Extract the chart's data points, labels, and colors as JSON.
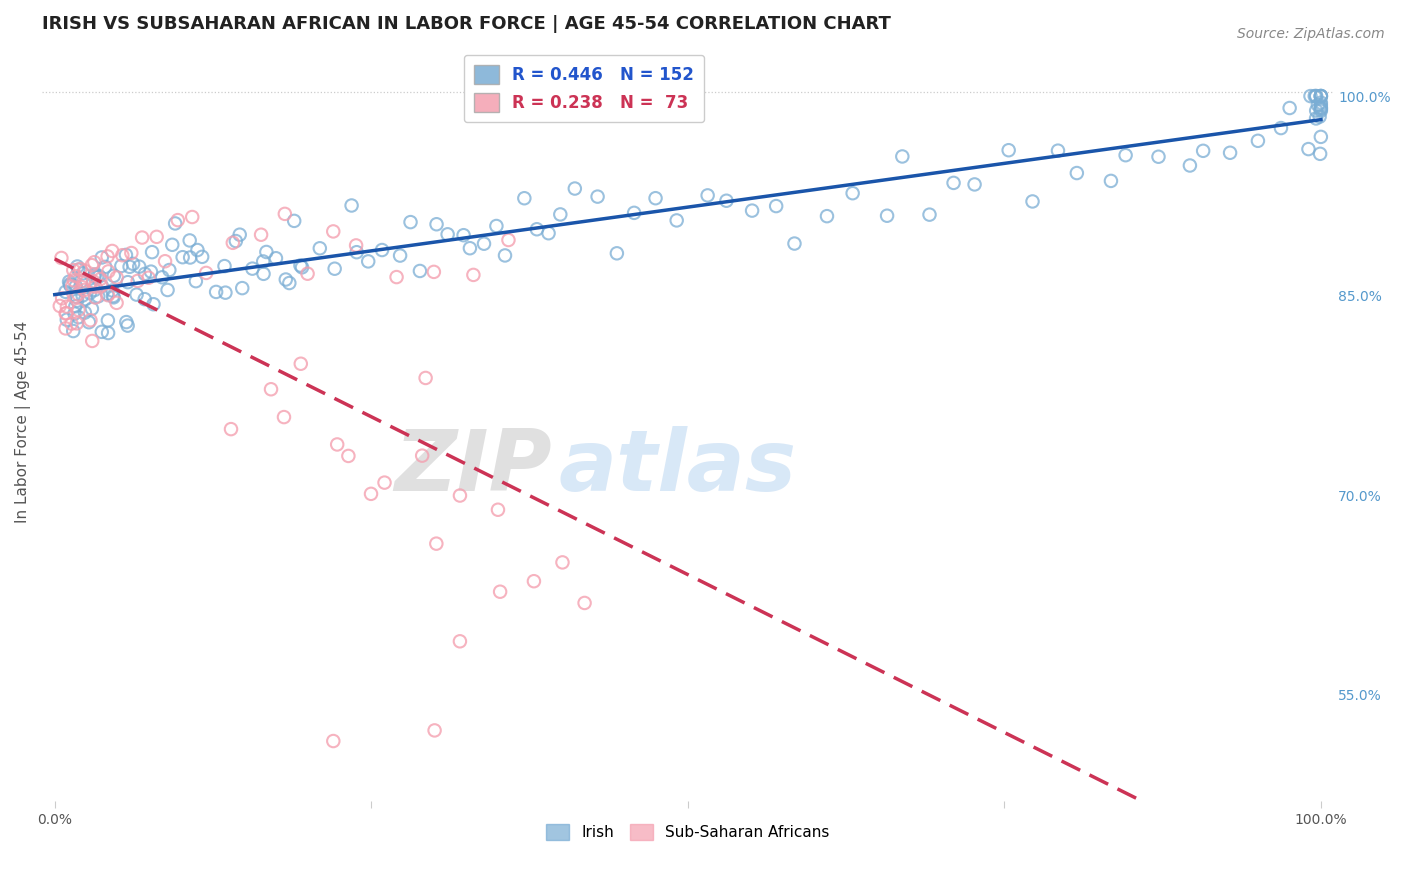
{
  "title": "IRISH VS SUBSAHARAN AFRICAN IN LABOR FORCE | AGE 45-54 CORRELATION CHART",
  "source": "Source: ZipAtlas.com",
  "ylabel": "In Labor Force | Age 45-54",
  "xlim": [
    -0.01,
    1.01
  ],
  "ylim": [
    0.47,
    1.04
  ],
  "right_yticks": [
    0.55,
    0.7,
    0.85,
    1.0
  ],
  "right_yticklabels": [
    "55.0%",
    "70.0%",
    "85.0%",
    "100.0%"
  ],
  "legend_entries": [
    {
      "label": "R = 0.446   N = 152",
      "color": "#7aadd4"
    },
    {
      "label": "R = 0.238   N =  73",
      "color": "#f4a0b0"
    }
  ],
  "legend_labels_bottom": [
    "Irish",
    "Sub-Saharan Africans"
  ],
  "irish_R": 0.446,
  "irish_N": 152,
  "subsaharan_R": 0.238,
  "subsaharan_N": 73,
  "blue_color": "#7aadd4",
  "pink_color": "#f4a0b0",
  "blue_line_color": "#1a55aa",
  "pink_line_color": "#cc3355",
  "marker_size": 80,
  "background_color": "#ffffff",
  "grid_color": "#cccccc",
  "title_fontsize": 13,
  "axis_label_fontsize": 11,
  "tick_fontsize": 10,
  "source_fontsize": 10,
  "irish_x": [
    0.008,
    0.009,
    0.01,
    0.011,
    0.012,
    0.013,
    0.014,
    0.015,
    0.016,
    0.017,
    0.018,
    0.019,
    0.02,
    0.022,
    0.023,
    0.024,
    0.025,
    0.026,
    0.027,
    0.028,
    0.029,
    0.03,
    0.031,
    0.032,
    0.033,
    0.034,
    0.035,
    0.036,
    0.037,
    0.038,
    0.039,
    0.04,
    0.042,
    0.043,
    0.044,
    0.045,
    0.046,
    0.048,
    0.05,
    0.052,
    0.054,
    0.056,
    0.058,
    0.06,
    0.062,
    0.064,
    0.066,
    0.068,
    0.07,
    0.072,
    0.075,
    0.078,
    0.08,
    0.083,
    0.086,
    0.09,
    0.093,
    0.096,
    0.1,
    0.104,
    0.108,
    0.112,
    0.116,
    0.12,
    0.125,
    0.13,
    0.135,
    0.14,
    0.145,
    0.15,
    0.155,
    0.16,
    0.165,
    0.17,
    0.175,
    0.18,
    0.185,
    0.19,
    0.195,
    0.2,
    0.21,
    0.22,
    0.23,
    0.24,
    0.25,
    0.26,
    0.27,
    0.28,
    0.29,
    0.3,
    0.31,
    0.32,
    0.33,
    0.34,
    0.35,
    0.36,
    0.37,
    0.38,
    0.39,
    0.4,
    0.415,
    0.43,
    0.445,
    0.46,
    0.475,
    0.49,
    0.51,
    0.53,
    0.55,
    0.57,
    0.59,
    0.61,
    0.63,
    0.65,
    0.67,
    0.69,
    0.71,
    0.73,
    0.75,
    0.77,
    0.79,
    0.81,
    0.83,
    0.85,
    0.87,
    0.89,
    0.91,
    0.93,
    0.95,
    0.97,
    0.98,
    0.99,
    0.995,
    0.998,
    0.999,
    1.0,
    1.0,
    1.0,
    1.0,
    1.0,
    1.0,
    1.0,
    1.0,
    1.0,
    1.0,
    1.0,
    1.0,
    1.0,
    1.0,
    1.0,
    1.0,
    1.0
  ],
  "irish_y": [
    0.84,
    0.85,
    0.855,
    0.845,
    0.838,
    0.852,
    0.848,
    0.841,
    0.835,
    0.86,
    0.843,
    0.856,
    0.849,
    0.837,
    0.862,
    0.844,
    0.853,
    0.839,
    0.858,
    0.847,
    0.865,
    0.836,
    0.861,
    0.842,
    0.854,
    0.832,
    0.869,
    0.846,
    0.857,
    0.833,
    0.87,
    0.848,
    0.834,
    0.863,
    0.843,
    0.852,
    0.875,
    0.84,
    0.855,
    0.862,
    0.878,
    0.845,
    0.858,
    0.867,
    0.838,
    0.872,
    0.85,
    0.88,
    0.843,
    0.865,
    0.855,
    0.87,
    0.86,
    0.875,
    0.848,
    0.882,
    0.863,
    0.858,
    0.872,
    0.865,
    0.88,
    0.853,
    0.888,
    0.87,
    0.862,
    0.875,
    0.858,
    0.89,
    0.868,
    0.878,
    0.862,
    0.895,
    0.872,
    0.865,
    0.882,
    0.875,
    0.868,
    0.898,
    0.88,
    0.87,
    0.885,
    0.878,
    0.892,
    0.875,
    0.9,
    0.882,
    0.888,
    0.895,
    0.878,
    0.905,
    0.89,
    0.885,
    0.9,
    0.893,
    0.908,
    0.888,
    0.902,
    0.895,
    0.912,
    0.9,
    0.905,
    0.912,
    0.9,
    0.918,
    0.908,
    0.915,
    0.92,
    0.912,
    0.925,
    0.918,
    0.928,
    0.922,
    0.93,
    0.925,
    0.935,
    0.928,
    0.94,
    0.932,
    0.942,
    0.938,
    0.945,
    0.942,
    0.948,
    0.95,
    0.952,
    0.955,
    0.958,
    0.962,
    0.965,
    0.968,
    0.972,
    0.975,
    0.978,
    0.98,
    0.985,
    0.988,
    0.99,
    0.992,
    0.994,
    0.995,
    0.996,
    0.997,
    0.998,
    0.999,
    1.0,
    1.0,
    1.0,
    1.0,
    1.0,
    1.0,
    1.0,
    0.962
  ],
  "sub_x": [
    0.004,
    0.005,
    0.006,
    0.007,
    0.008,
    0.009,
    0.01,
    0.011,
    0.012,
    0.013,
    0.014,
    0.015,
    0.016,
    0.017,
    0.018,
    0.019,
    0.02,
    0.022,
    0.023,
    0.024,
    0.025,
    0.026,
    0.027,
    0.028,
    0.029,
    0.03,
    0.032,
    0.034,
    0.036,
    0.038,
    0.04,
    0.042,
    0.044,
    0.046,
    0.048,
    0.05,
    0.055,
    0.06,
    0.065,
    0.07,
    0.075,
    0.08,
    0.09,
    0.1,
    0.11,
    0.12,
    0.14,
    0.16,
    0.18,
    0.2,
    0.22,
    0.24,
    0.27,
    0.3,
    0.33,
    0.36,
    0.18,
    0.22,
    0.25,
    0.17,
    0.3,
    0.14,
    0.26,
    0.32,
    0.29,
    0.38,
    0.35,
    0.4,
    0.29,
    0.23,
    0.19,
    0.42,
    0.35
  ],
  "sub_y": [
    0.84,
    0.852,
    0.835,
    0.858,
    0.844,
    0.862,
    0.848,
    0.838,
    0.855,
    0.865,
    0.842,
    0.85,
    0.836,
    0.86,
    0.845,
    0.855,
    0.848,
    0.84,
    0.862,
    0.852,
    0.845,
    0.87,
    0.858,
    0.835,
    0.868,
    0.875,
    0.848,
    0.862,
    0.855,
    0.87,
    0.852,
    0.878,
    0.862,
    0.875,
    0.858,
    0.882,
    0.865,
    0.878,
    0.87,
    0.875,
    0.862,
    0.88,
    0.875,
    0.882,
    0.888,
    0.87,
    0.878,
    0.888,
    0.895,
    0.878,
    0.89,
    0.875,
    0.885,
    0.882,
    0.89,
    0.895,
    0.75,
    0.72,
    0.7,
    0.76,
    0.68,
    0.77,
    0.71,
    0.695,
    0.73,
    0.66,
    0.69,
    0.665,
    0.78,
    0.725,
    0.81,
    0.625,
    0.64
  ]
}
